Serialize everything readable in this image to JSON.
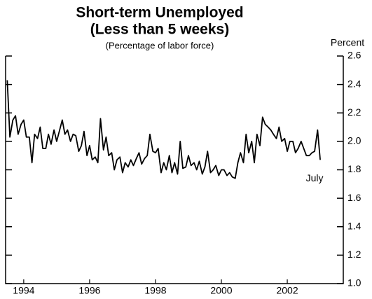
{
  "chart_data": {
    "type": "line",
    "title": [
      "Short-term Unemployed",
      "(Less than 5 weeks)"
    ],
    "subtitle": "(Percentage of labor force)",
    "y_axis_label": "Percent",
    "annotation": "July",
    "color": "#000000",
    "x": [
      1994.0,
      1994.08,
      1994.17,
      1994.25,
      1994.33,
      1994.42,
      1994.5,
      1994.58,
      1994.67,
      1994.75,
      1994.83,
      1994.92,
      1995.0,
      1995.08,
      1995.17,
      1995.25,
      1995.33,
      1995.42,
      1995.5,
      1995.58,
      1995.67,
      1995.75,
      1995.83,
      1995.92,
      1996.0,
      1996.08,
      1996.17,
      1996.25,
      1996.33,
      1996.42,
      1996.5,
      1996.58,
      1996.67,
      1996.75,
      1996.83,
      1996.92,
      1997.0,
      1997.08,
      1997.17,
      1997.25,
      1997.33,
      1997.42,
      1997.5,
      1997.58,
      1997.67,
      1997.75,
      1997.83,
      1997.92,
      1998.0,
      1998.08,
      1998.17,
      1998.25,
      1998.33,
      1998.42,
      1998.5,
      1998.58,
      1998.67,
      1998.75,
      1998.83,
      1998.92,
      1999.0,
      1999.08,
      1999.17,
      1999.25,
      1999.33,
      1999.42,
      1999.5,
      1999.58,
      1999.67,
      1999.75,
      1999.83,
      1999.92,
      2000.0,
      2000.08,
      2000.17,
      2000.25,
      2000.33,
      2000.42,
      2000.5,
      2000.58,
      2000.67,
      2000.75,
      2000.83,
      2000.92,
      2001.0,
      2001.08,
      2001.17,
      2001.25,
      2001.33,
      2001.42,
      2001.5,
      2001.58,
      2001.67,
      2001.75,
      2001.83,
      2001.92,
      2002.0,
      2002.08,
      2002.17,
      2002.25,
      2002.33,
      2002.42,
      2002.5,
      2002.58,
      2002.67,
      2002.75,
      2002.83,
      2002.92,
      2003.0,
      2003.08,
      2003.17,
      2003.25,
      2003.33,
      2003.42,
      2003.5
    ],
    "values": [
      2.43,
      2.03,
      2.15,
      2.18,
      2.05,
      2.12,
      2.15,
      2.03,
      2.03,
      1.85,
      2.05,
      2.02,
      2.1,
      1.95,
      1.95,
      2.05,
      1.98,
      2.08,
      2.0,
      2.07,
      2.15,
      2.05,
      2.08,
      2.0,
      2.05,
      2.04,
      1.93,
      1.97,
      2.07,
      1.9,
      1.97,
      1.87,
      1.89,
      1.85,
      2.16,
      1.94,
      2.03,
      1.9,
      1.92,
      1.8,
      1.87,
      1.89,
      1.78,
      1.85,
      1.82,
      1.87,
      1.83,
      1.88,
      1.92,
      1.84,
      1.88,
      1.9,
      2.05,
      1.93,
      1.92,
      1.95,
      1.78,
      1.85,
      1.8,
      1.9,
      1.78,
      1.85,
      1.77,
      2.0,
      1.81,
      1.82,
      1.9,
      1.83,
      1.85,
      1.8,
      1.86,
      1.77,
      1.82,
      1.93,
      1.78,
      1.8,
      1.83,
      1.76,
      1.8,
      1.8,
      1.76,
      1.78,
      1.75,
      1.74,
      1.85,
      1.92,
      1.85,
      2.05,
      1.92,
      2.0,
      1.85,
      2.05,
      1.97,
      2.17,
      2.12,
      2.1,
      2.08,
      2.05,
      2.02,
      2.1,
      2.0,
      2.02,
      1.93,
      2.0,
      2.0,
      1.92,
      1.95,
      2.0,
      1.95,
      1.9,
      1.9,
      1.92,
      1.93,
      2.08,
      1.87
    ],
    "xlim": [
      1993.95,
      2004.2
    ],
    "xticks": [
      {
        "value": 1994.5,
        "label": "1994"
      },
      {
        "value": 1996.5,
        "label": "1996"
      },
      {
        "value": 1998.5,
        "label": "1998"
      },
      {
        "value": 2000.5,
        "label": "2000"
      },
      {
        "value": 2002.5,
        "label": "2002"
      }
    ],
    "ylim": [
      1.0,
      2.6
    ],
    "yticks": [
      {
        "value": 1.0,
        "label": "1.0"
      },
      1.2,
      1.4,
      1.6,
      1.8,
      {
        "value": 2.0,
        "label": "2.0"
      },
      2.2,
      2.4,
      2.6
    ],
    "grid": false
  }
}
